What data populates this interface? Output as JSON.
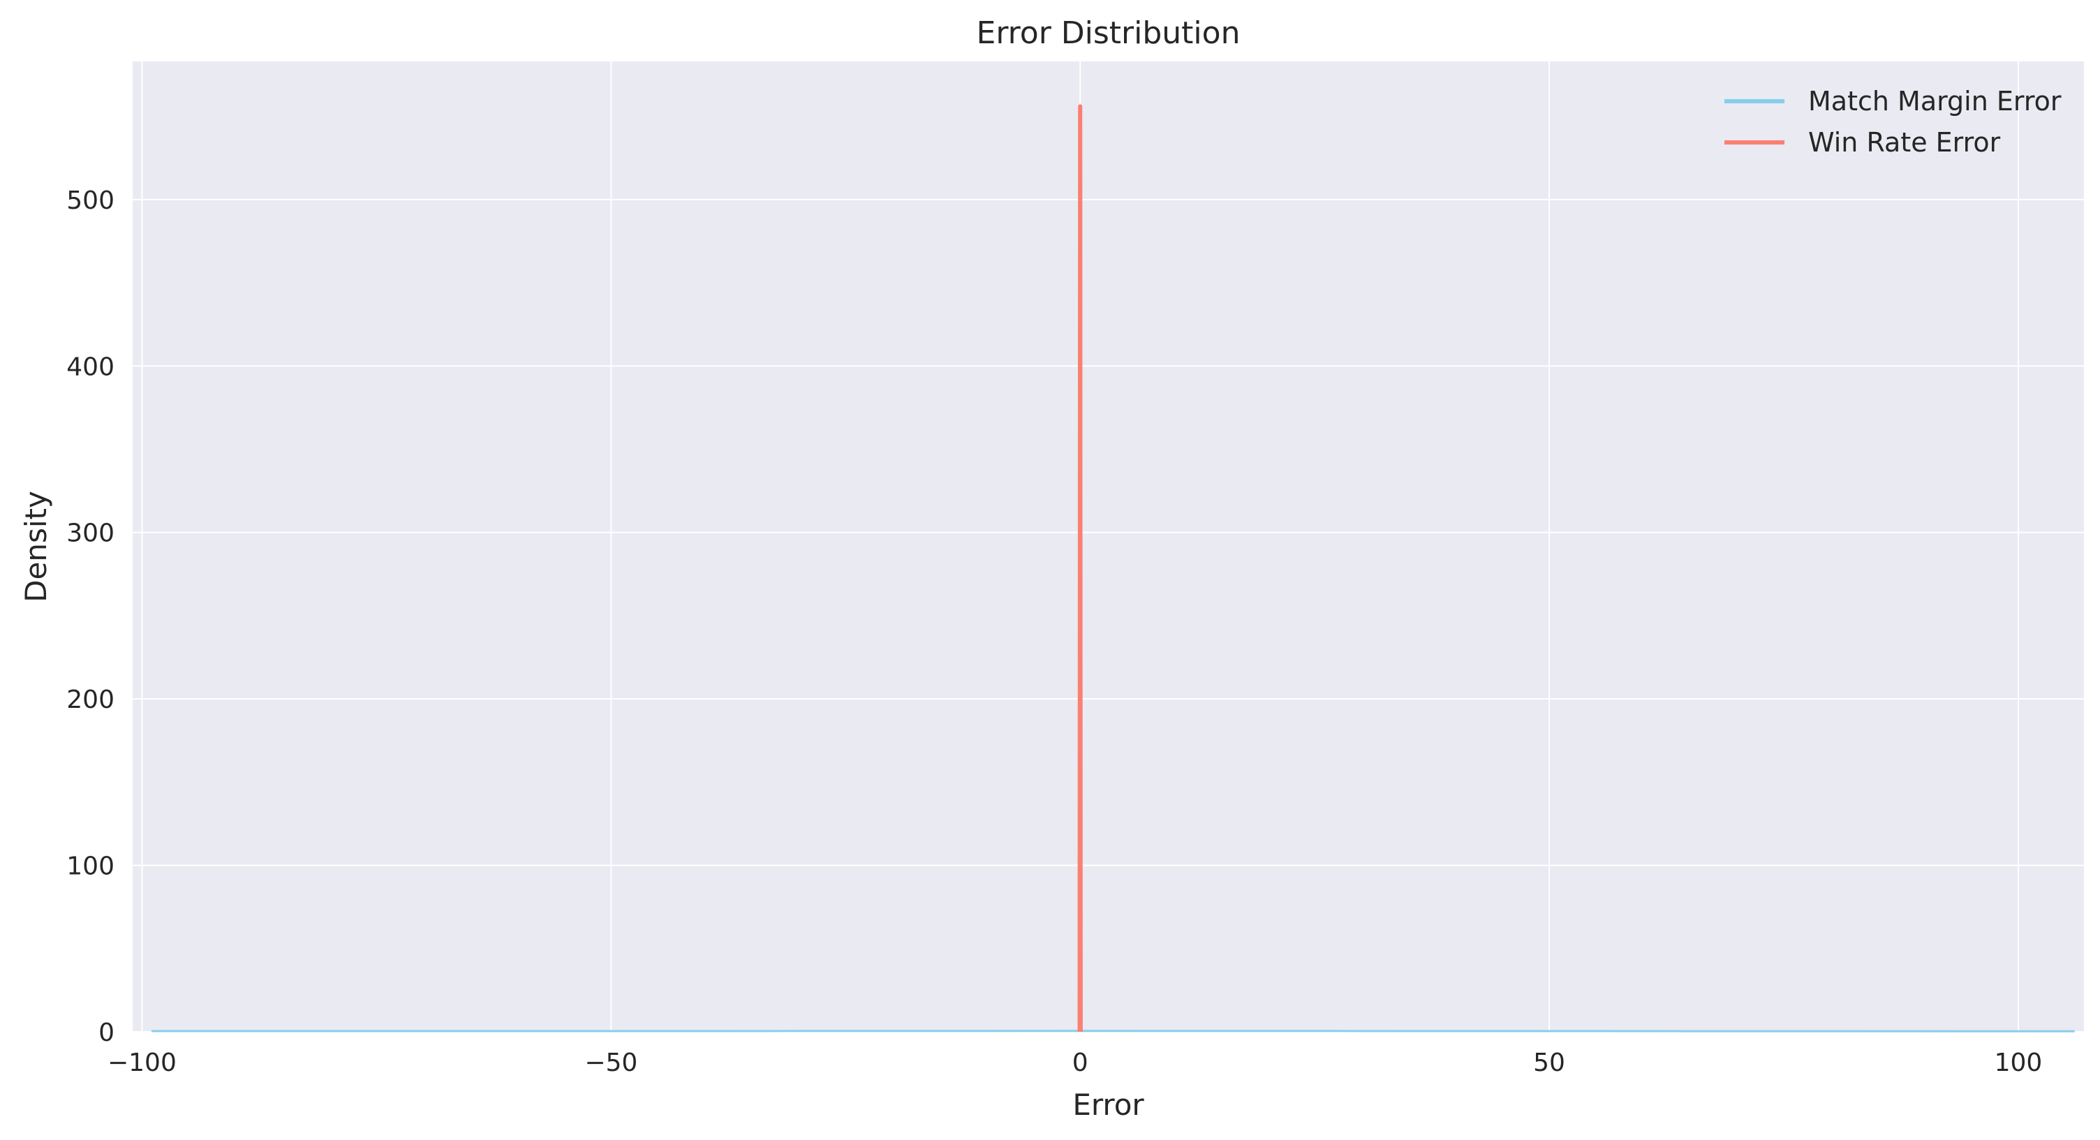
{
  "chart_data": {
    "type": "line",
    "title": "Error Distribution",
    "xlabel": "Error",
    "ylabel": "Density",
    "xlim": [
      -101,
      107
    ],
    "ylim": [
      0,
      583
    ],
    "xticks": [
      -100,
      -50,
      0,
      50,
      100
    ],
    "xtick_labels": [
      "−100",
      "−50",
      "0",
      "50",
      "100"
    ],
    "yticks": [
      0,
      100,
      200,
      300,
      400,
      500
    ],
    "ytick_labels": [
      "0",
      "100",
      "200",
      "300",
      "400",
      "500"
    ],
    "grid": true,
    "legend_position": "top-right",
    "series": [
      {
        "name": "Match Margin Error",
        "color": "#87ceeb",
        "points": [
          [
            -99,
            0.4
          ],
          [
            -50,
            0.4
          ],
          [
            0,
            0.5
          ],
          [
            50,
            0.4
          ],
          [
            106,
            0.3
          ]
        ]
      },
      {
        "name": "Win Rate Error",
        "color": "#fa8072",
        "points": [
          [
            -0.05,
            0
          ],
          [
            0,
            556
          ],
          [
            0.05,
            0
          ]
        ]
      }
    ]
  },
  "colors": {
    "plot_background": "#eaeaf2",
    "grid": "#ffffff",
    "text": "#262626"
  }
}
